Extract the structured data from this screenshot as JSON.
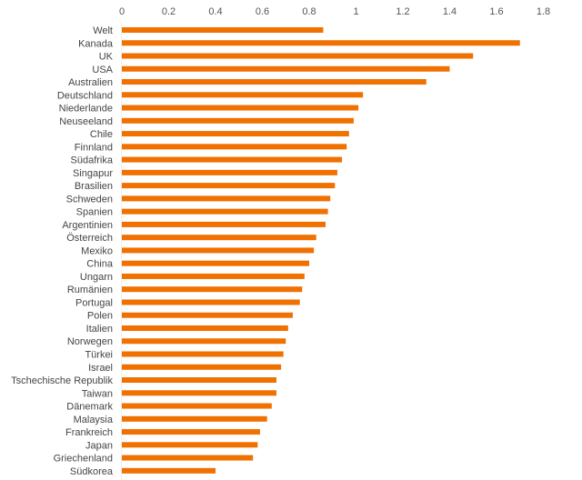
{
  "chart_data": {
    "type": "bar",
    "orientation": "horizontal",
    "title": "",
    "xlabel": "",
    "ylabel": "",
    "xlim": [
      0,
      1.8
    ],
    "x_ticks": [
      "0",
      "0.2",
      "0.4",
      "0.6",
      "0.8",
      "1",
      "1.2",
      "1.4",
      "1.6",
      "1.8"
    ],
    "tick_values": [
      0,
      0.2,
      0.4,
      0.6,
      0.8,
      1,
      1.2,
      1.4,
      1.6,
      1.8
    ],
    "axis_position": "top",
    "grid": false,
    "legend": "none",
    "bar_color": "#f07000",
    "categories": [
      "Welt",
      "Kanada",
      "UK",
      "USA",
      "Australien",
      "Deutschland",
      "Niederlande",
      "Neuseeland",
      "Chile",
      "Finnland",
      "Südafrika",
      "Singapur",
      "Brasilien",
      "Schweden",
      "Spanien",
      "Argentinien",
      "Österreich",
      "Mexiko",
      "China",
      "Ungarn",
      "Rumänien",
      "Portugal",
      "Polen",
      "Italien",
      "Norwegen",
      "Türkei",
      "Israel",
      "Tschechische Republik",
      "Taiwan",
      "Dänemark",
      "Malaysia",
      "Frankreich",
      "Japan",
      "Griechenland",
      "Südkorea"
    ],
    "values": [
      0.86,
      1.7,
      1.5,
      1.4,
      1.3,
      1.03,
      1.01,
      0.99,
      0.97,
      0.96,
      0.94,
      0.92,
      0.91,
      0.89,
      0.88,
      0.87,
      0.83,
      0.82,
      0.8,
      0.78,
      0.77,
      0.76,
      0.73,
      0.71,
      0.7,
      0.69,
      0.68,
      0.66,
      0.66,
      0.64,
      0.62,
      0.59,
      0.58,
      0.56,
      0.4
    ]
  }
}
